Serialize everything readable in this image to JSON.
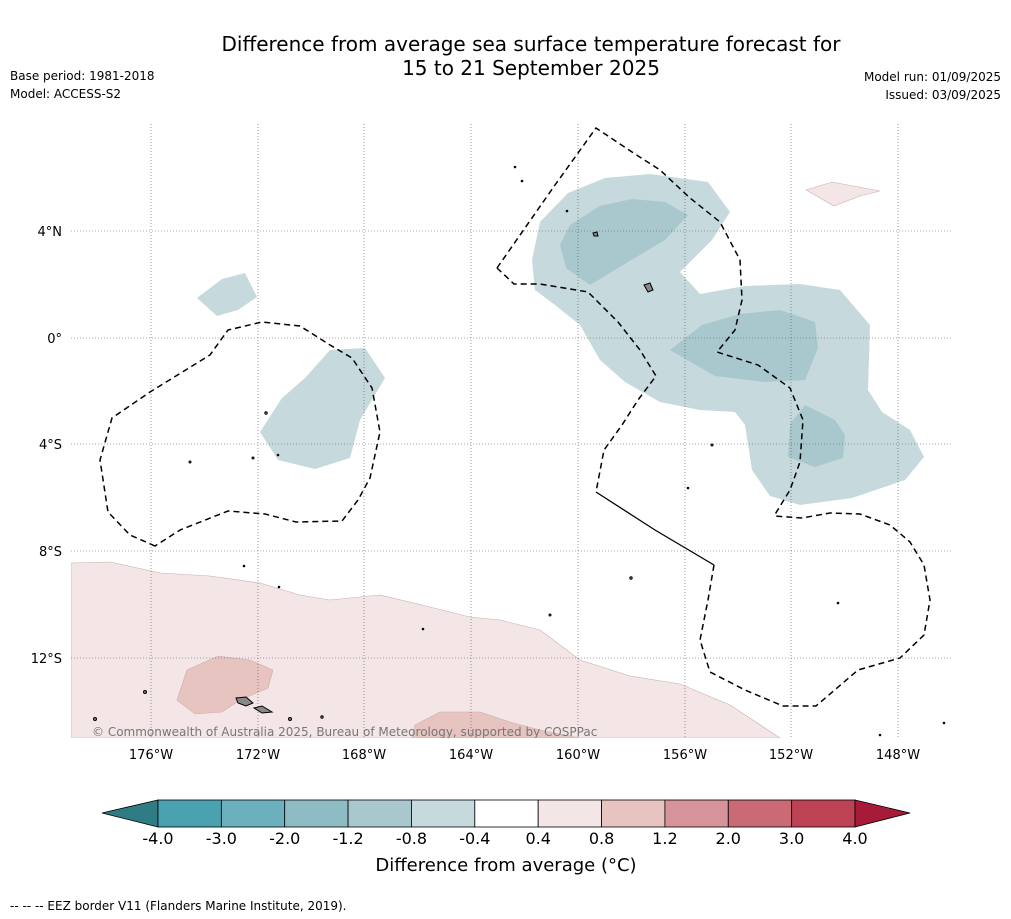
{
  "title_line1": "Difference from average sea surface temperature forecast for",
  "title_line2": "15 to 21 September 2025",
  "base_period": "Base period: 1981-2018",
  "model": "Model: ACCESS-S2",
  "model_run": "Model run: 01/09/2025",
  "issued": "Issued: 03/09/2025",
  "map": {
    "lat_labels": [
      "4°N",
      "0°",
      "4°S",
      "8°S",
      "12°S"
    ],
    "lon_labels": [
      "176°W",
      "172°W",
      "168°W",
      "164°W",
      "160°W",
      "156°W",
      "152°W",
      "148°W"
    ],
    "copyright": "© Commonwealth of Australia 2025, Bureau of Meteorology, supported by COSPPac"
  },
  "colorbar": {
    "ticks": [
      "-4.0",
      "-3.0",
      "-2.0",
      "-1.2",
      "-0.8",
      "-0.4",
      "0.4",
      "0.8",
      "1.2",
      "2.0",
      "3.0",
      "4.0"
    ],
    "colors": [
      "#4aa2b0",
      "#6cb0bd",
      "#8ebcc4",
      "#a8c8cd",
      "#c6d9dd",
      "#ffffff",
      "#f4e6e6",
      "#e7c4c0",
      "#d6939a",
      "#c96a74",
      "#bd4354"
    ],
    "under_color": "#2f7c85",
    "over_color": "#a81b38",
    "label": "Difference from average (°C)"
  },
  "footer": "--  --  -- EEZ border V11 (Flanders Marine Institute, 2019)."
}
